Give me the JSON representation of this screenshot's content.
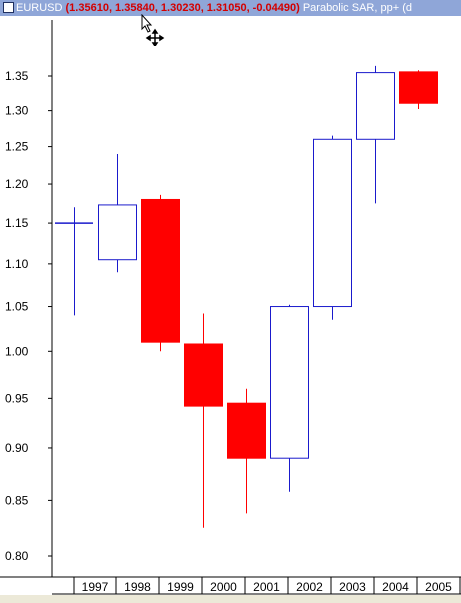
{
  "window": {
    "symbol": "EURUSD",
    "ohlc_text": "(1.35610, 1.35840, 1.30230, 1.31050, -0.04490)",
    "indicators_text": "Parabolic SAR, pp+ (d"
  },
  "colors": {
    "title_bg": "#8fa6d8",
    "up_candle": "#1a1acc",
    "down_candle": "#ff0000",
    "ohlc_text": "#d40000"
  },
  "chart_data": {
    "type": "candlestick",
    "period": "yearly",
    "y_ticks": [
      "0.80",
      "0.85",
      "0.90",
      "0.95",
      "1.00",
      "1.05",
      "1.10",
      "1.15",
      "1.20",
      "1.25",
      "1.30",
      "1.35"
    ],
    "x_labels": [
      "1997",
      "1998",
      "1999",
      "2000",
      "2001",
      "2002",
      "2003",
      "2004",
      "2005"
    ],
    "ylim": [
      0.78,
      1.42
    ],
    "y_scale": "log",
    "grid": false,
    "series": [
      {
        "x": "1997",
        "open": 1.15,
        "high": 1.17,
        "low": 1.04,
        "close": 1.15
      },
      {
        "x": "1998",
        "open": 1.105,
        "high": 1.24,
        "low": 1.09,
        "close": 1.173
      },
      {
        "x": "1999",
        "open": 1.18,
        "high": 1.186,
        "low": 1.0,
        "close": 1.01
      },
      {
        "x": "2000",
        "open": 1.008,
        "high": 1.042,
        "low": 0.825,
        "close": 0.942
      },
      {
        "x": "2001",
        "open": 0.945,
        "high": 0.96,
        "low": 0.838,
        "close": 0.89
      },
      {
        "x": "2002",
        "open": 0.89,
        "high": 1.052,
        "low": 0.858,
        "close": 1.05
      },
      {
        "x": "2003",
        "open": 1.05,
        "high": 1.265,
        "low": 1.035,
        "close": 1.26
      },
      {
        "x": "2004",
        "open": 1.26,
        "high": 1.365,
        "low": 1.175,
        "close": 1.355
      },
      {
        "x": "2005",
        "open": 1.3561,
        "high": 1.3584,
        "low": 1.3023,
        "close": 1.3105
      }
    ]
  }
}
